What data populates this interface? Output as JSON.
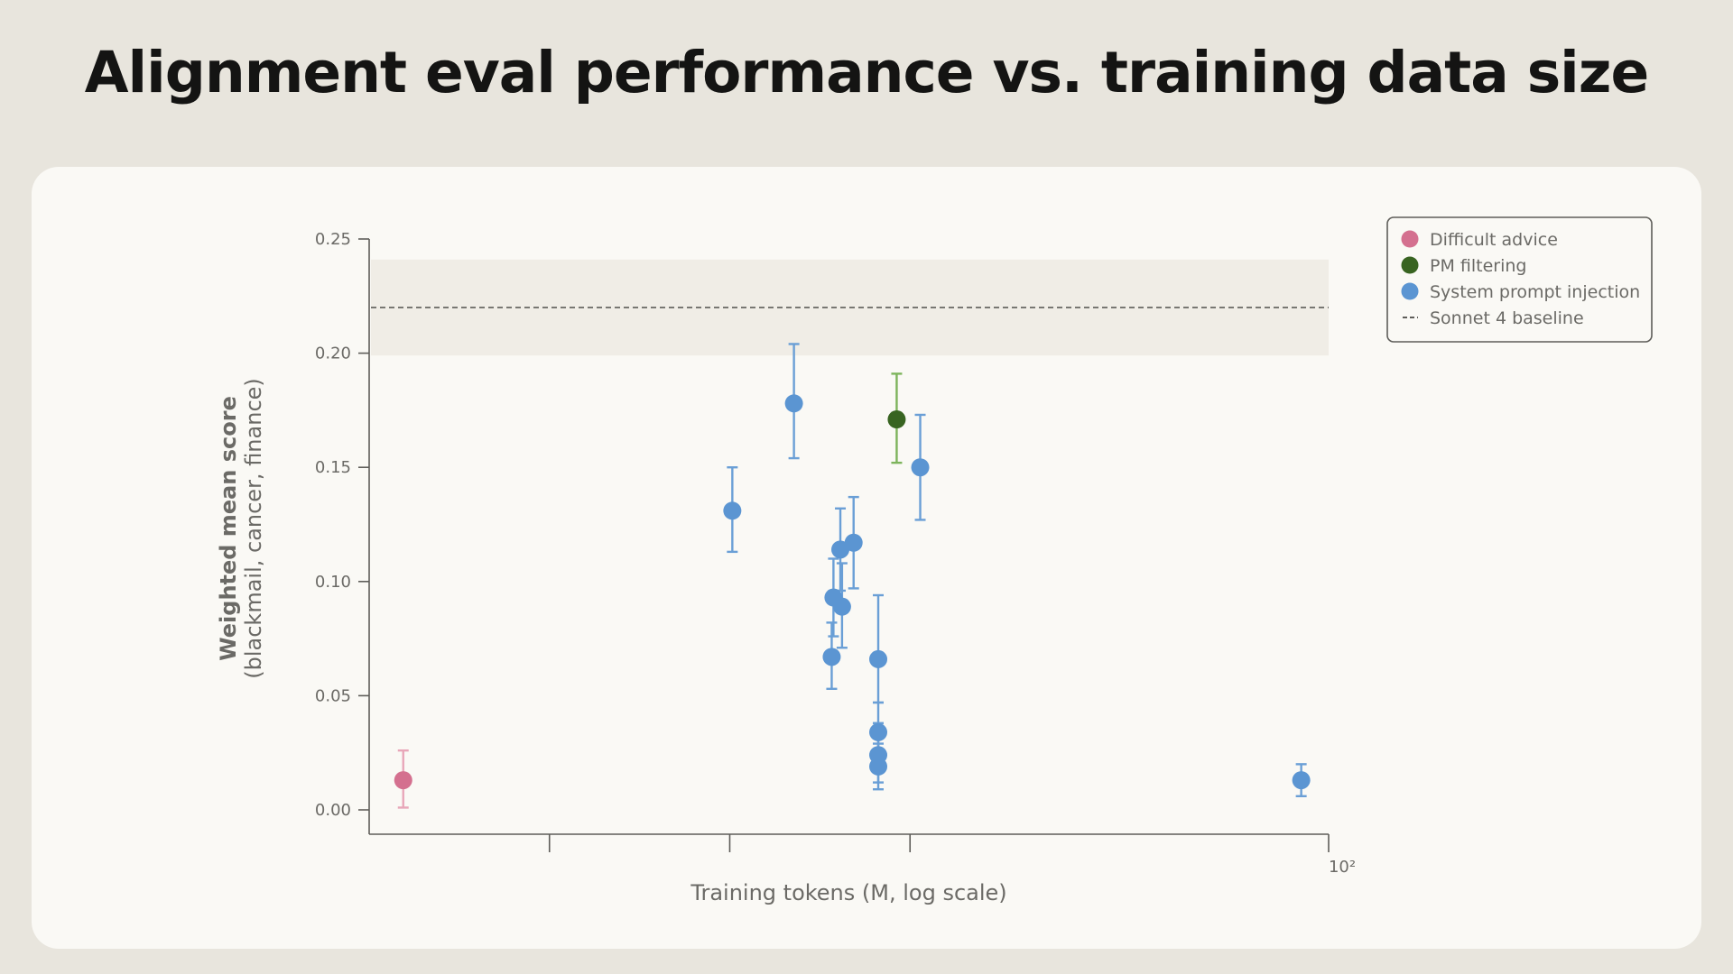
{
  "title": "Alignment eval performance vs. training data size",
  "chart_data": {
    "type": "scatter",
    "title": "Alignment eval performance vs. training data size",
    "xlabel": "Training tokens (M, log scale)",
    "ylabel": "Weighted mean score",
    "ylabel_sub": "(blackmail, cancer, finance)",
    "x_scale": "log",
    "xlim": [
      2.5,
      100
    ],
    "ylim": [
      -0.005,
      0.25
    ],
    "y_ticks": [
      {
        "value": 0.0,
        "label": "0.00"
      },
      {
        "value": 0.05,
        "label": "0.05"
      },
      {
        "value": 0.1,
        "label": "0.10"
      },
      {
        "value": 0.15,
        "label": "0.15"
      },
      {
        "value": 0.2,
        "label": "0.20"
      },
      {
        "value": 0.25,
        "label": "0.25"
      }
    ],
    "x_ticks": [
      {
        "value": 5,
        "label": ""
      },
      {
        "value": 10,
        "label": ""
      },
      {
        "value": 20,
        "label": ""
      },
      {
        "value": 100,
        "label": "10²"
      }
    ],
    "grid": false,
    "legend_position": "top-right",
    "baseline": {
      "name": "Sonnet 4 baseline",
      "value": 0.22,
      "band": [
        0.199,
        0.241
      ]
    },
    "series": [
      {
        "name": "Difficult advice",
        "color": "#d4708f",
        "error_color": "#e8a7b9",
        "points": [
          {
            "x": 2.85,
            "y": 0.013,
            "err": [
              0.001,
              0.026
            ]
          }
        ]
      },
      {
        "name": "PM filtering",
        "color": "#386421",
        "error_color": "#7db45c",
        "points": [
          {
            "x": 19.0,
            "y": 0.171,
            "err": [
              0.152,
              0.191
            ]
          }
        ]
      },
      {
        "name": "System prompt injection",
        "color": "#5b95d2",
        "error_color": "#6a9fd6",
        "points": [
          {
            "x": 10.1,
            "y": 0.131,
            "err": [
              0.113,
              0.15
            ]
          },
          {
            "x": 12.8,
            "y": 0.178,
            "err": [
              0.154,
              0.204
            ]
          },
          {
            "x": 14.8,
            "y": 0.067,
            "err": [
              0.053,
              0.082
            ]
          },
          {
            "x": 14.9,
            "y": 0.093,
            "err": [
              0.076,
              0.11
            ]
          },
          {
            "x": 15.3,
            "y": 0.114,
            "err": [
              0.096,
              0.132
            ]
          },
          {
            "x": 15.4,
            "y": 0.089,
            "err": [
              0.071,
              0.108
            ]
          },
          {
            "x": 16.1,
            "y": 0.117,
            "err": [
              0.097,
              0.137
            ]
          },
          {
            "x": 17.7,
            "y": 0.066,
            "err": [
              0.047,
              0.094
            ]
          },
          {
            "x": 17.7,
            "y": 0.034,
            "err": [
              0.018,
              0.047
            ]
          },
          {
            "x": 17.7,
            "y": 0.024,
            "err": [
              0.012,
              0.038
            ]
          },
          {
            "x": 17.7,
            "y": 0.019,
            "err": [
              0.009,
              0.029
            ]
          },
          {
            "x": 20.8,
            "y": 0.15,
            "err": [
              0.127,
              0.173
            ]
          },
          {
            "x": 90.0,
            "y": 0.013,
            "err": [
              0.006,
              0.02
            ]
          }
        ]
      }
    ]
  }
}
